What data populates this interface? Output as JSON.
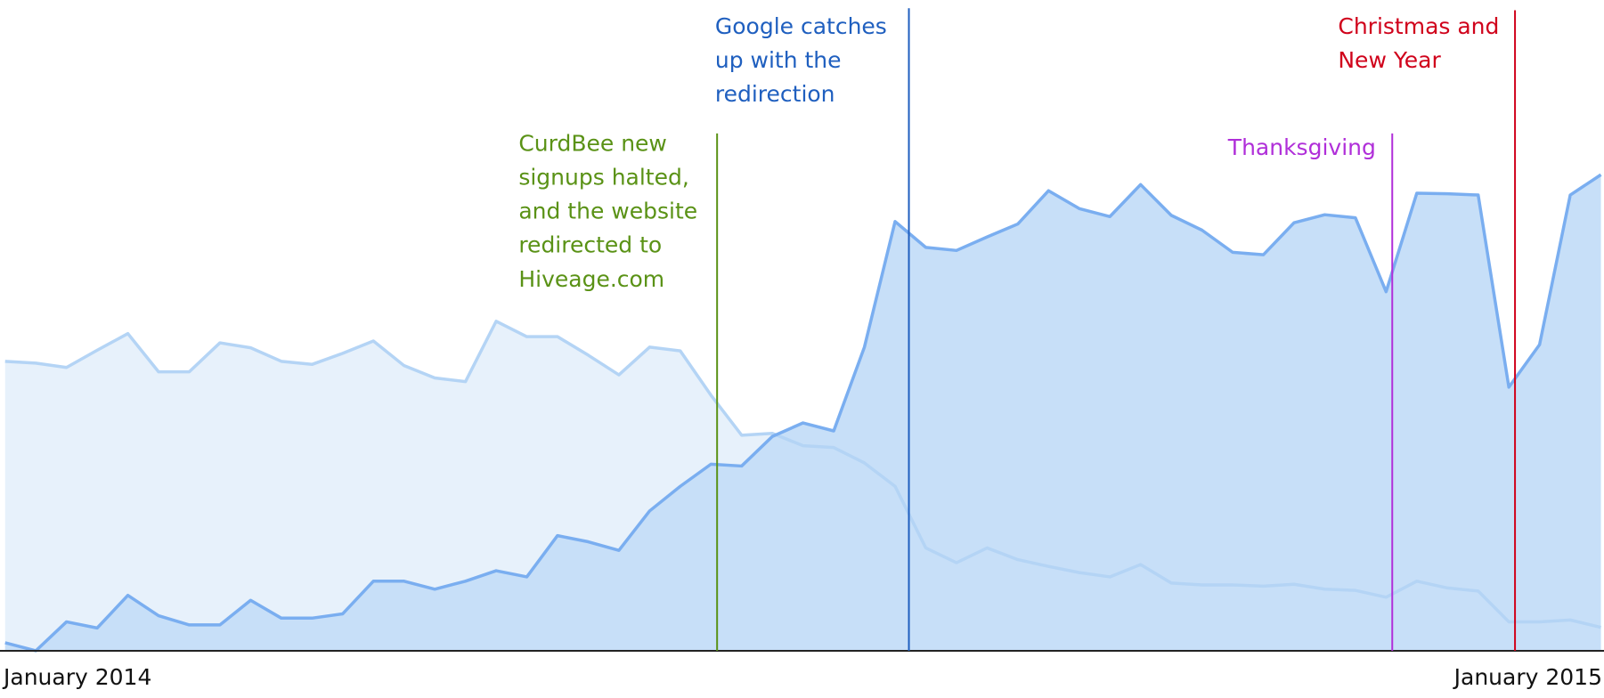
{
  "chart_data": {
    "type": "area",
    "categories": [
      "January 2014",
      null,
      null,
      null,
      null,
      null,
      null,
      null,
      null,
      null,
      null,
      null,
      null,
      null,
      null,
      null,
      null,
      null,
      null,
      null,
      null,
      null,
      null,
      null,
      null,
      null,
      null,
      null,
      null,
      null,
      null,
      null,
      null,
      null,
      null,
      null,
      null,
      null,
      null,
      null,
      null,
      null,
      null,
      null,
      null,
      null,
      null,
      null,
      null,
      null,
      null,
      null,
      "January 2015"
    ],
    "ylim": [
      0,
      105
    ],
    "series": [
      {
        "color": "#b4d4f5",
        "fill": "#e7f1fb",
        "values": [
          47,
          46.7,
          46,
          48.8,
          51.5,
          45.3,
          45.3,
          50,
          49.2,
          47,
          46.5,
          48.3,
          50.3,
          46.3,
          44.3,
          43.7,
          53.5,
          51,
          51,
          48,
          44.8,
          49.3,
          48.7,
          41.5,
          35,
          35.3,
          33.3,
          33,
          30.5,
          26.7,
          16.7,
          14.3,
          16.7,
          14.8,
          13.7,
          12.7,
          12,
          14,
          11,
          10.7,
          10.7,
          10.5,
          10.8,
          10,
          9.8,
          8.7,
          11.3,
          10.2,
          9.7,
          4.7,
          4.7,
          5,
          3.8
        ]
      },
      {
        "color": "#7aaef0",
        "fill": "#c7dff8",
        "values": [
          1.3,
          0,
          4.7,
          3.7,
          9,
          5.7,
          4.2,
          4.2,
          8.2,
          5.3,
          5.3,
          6,
          11.3,
          11.3,
          10,
          11.3,
          13,
          12,
          18.7,
          17.7,
          16.3,
          22.7,
          26.7,
          30.3,
          30,
          34.8,
          37,
          35.7,
          49.3,
          69.7,
          65.5,
          65,
          67.2,
          69.3,
          74.7,
          71.8,
          70.5,
          75.7,
          70.7,
          68.3,
          64.7,
          64.3,
          69.5,
          70.8,
          70.3,
          58.3,
          74.3,
          74.2,
          74,
          42.8,
          49.7,
          74,
          77.3
        ]
      }
    ],
    "annotations": [
      {
        "x": 23.2,
        "color": "#5a9216",
        "lines": [
          "CurdBee new",
          "signups halted,",
          "and the website",
          "redirected to",
          "Hiveage.com"
        ]
      },
      {
        "x": 29.45,
        "color": "#1f5fbf",
        "lines": [
          "Google catches",
          "up with the",
          "redirection"
        ]
      },
      {
        "x": 45.2,
        "color": "#b02fd9",
        "lines": [
          "Thanksgiving"
        ]
      },
      {
        "x": 49.2,
        "color": "#d0021b",
        "lines": [
          "Christmas and",
          "New Year"
        ]
      }
    ]
  }
}
